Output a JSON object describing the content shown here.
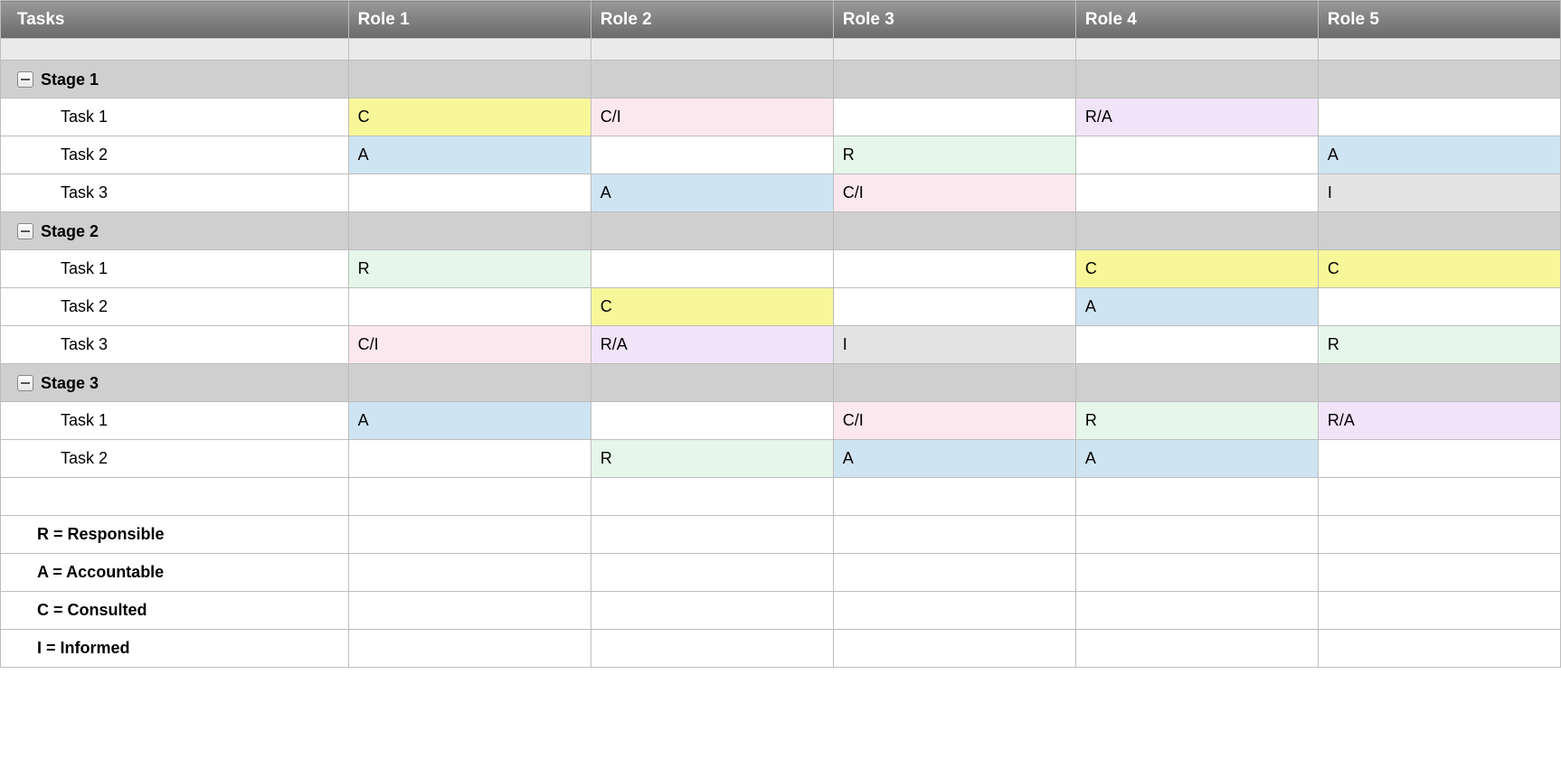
{
  "colors": {
    "R": "#e6f6ea",
    "A": "#cfe4f2",
    "C": "#f7f79a",
    "I": "#e3e3e3",
    "C/I": "#fbe8ee",
    "R/A": "#f1e4f9",
    "": "#ffffff"
  },
  "header": {
    "tasks": "Tasks",
    "roles": [
      "Role 1",
      "Role 2",
      "Role 3",
      "Role 4",
      "Role 5"
    ]
  },
  "stages": [
    {
      "label": "Stage 1",
      "tasks": [
        {
          "name": "Task 1",
          "cells": [
            "C",
            "C/I",
            "",
            "R/A",
            ""
          ]
        },
        {
          "name": "Task 2",
          "cells": [
            "A",
            "",
            "R",
            "",
            "A"
          ]
        },
        {
          "name": "Task 3",
          "cells": [
            "",
            "A",
            "C/I",
            "",
            "I"
          ]
        }
      ]
    },
    {
      "label": "Stage 2",
      "tasks": [
        {
          "name": "Task 1",
          "cells": [
            "R",
            "",
            "",
            "C",
            "C"
          ]
        },
        {
          "name": "Task 2",
          "cells": [
            "",
            "C",
            "",
            "A",
            ""
          ]
        },
        {
          "name": "Task 3",
          "cells": [
            "C/I",
            "R/A",
            "I",
            "",
            "R"
          ]
        }
      ]
    },
    {
      "label": "Stage 3",
      "tasks": [
        {
          "name": "Task 1",
          "cells": [
            "A",
            "",
            "C/I",
            "R",
            "R/A"
          ]
        },
        {
          "name": "Task 2",
          "cells": [
            "",
            "R",
            "A",
            "A",
            ""
          ]
        }
      ]
    }
  ],
  "legend": [
    "R = Responsible",
    "A = Accountable",
    "C = Consulted",
    "I = Informed"
  ]
}
